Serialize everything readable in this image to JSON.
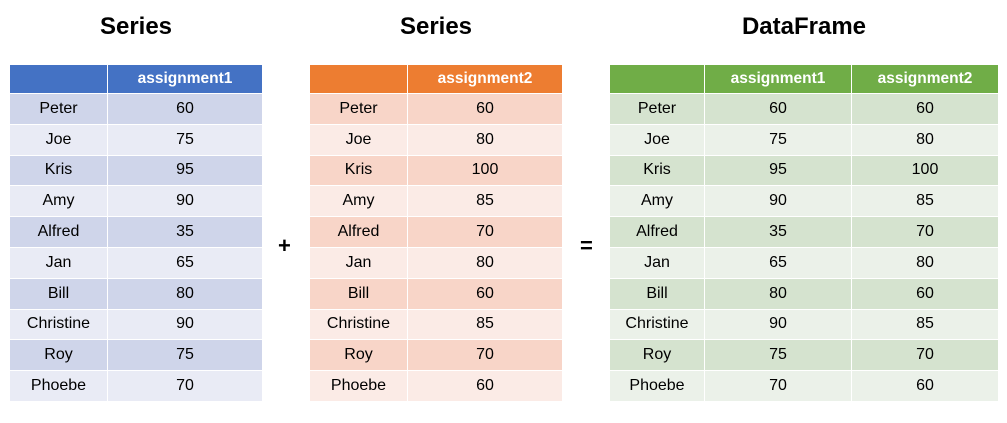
{
  "colors": {
    "series1_header": "#4472c4",
    "series1_dark": "#cfd5ea",
    "series1_light": "#e9ebf5",
    "series2_header": "#ed7d31",
    "series2_dark": "#f8d5c8",
    "series2_light": "#fbebe6",
    "df_header": "#70ad47",
    "df_dark": "#d5e3cf",
    "df_light": "#ebf1e9"
  },
  "series1": {
    "title": "Series",
    "header": [
      "",
      "assignment1"
    ],
    "rows": [
      [
        "Peter",
        "60"
      ],
      [
        "Joe",
        "75"
      ],
      [
        "Kris",
        "95"
      ],
      [
        "Amy",
        "90"
      ],
      [
        "Alfred",
        "35"
      ],
      [
        "Jan",
        "65"
      ],
      [
        "Bill",
        "80"
      ],
      [
        "Christine",
        "90"
      ],
      [
        "Roy",
        "75"
      ],
      [
        "Phoebe",
        "70"
      ]
    ]
  },
  "plus": "+",
  "series2": {
    "title": "Series",
    "header": [
      "",
      "assignment2"
    ],
    "rows": [
      [
        "Peter",
        "60"
      ],
      [
        "Joe",
        "80"
      ],
      [
        "Kris",
        "100"
      ],
      [
        "Amy",
        "85"
      ],
      [
        "Alfred",
        "70"
      ],
      [
        "Jan",
        "80"
      ],
      [
        "Bill",
        "60"
      ],
      [
        "Christine",
        "85"
      ],
      [
        "Roy",
        "70"
      ],
      [
        "Phoebe",
        "60"
      ]
    ]
  },
  "equals": "=",
  "dataframe": {
    "title": "DataFrame",
    "header": [
      "",
      "assignment1",
      "assignment2"
    ],
    "rows": [
      [
        "Peter",
        "60",
        "60"
      ],
      [
        "Joe",
        "75",
        "80"
      ],
      [
        "Kris",
        "95",
        "100"
      ],
      [
        "Amy",
        "90",
        "85"
      ],
      [
        "Alfred",
        "35",
        "70"
      ],
      [
        "Jan",
        "65",
        "80"
      ],
      [
        "Bill",
        "80",
        "60"
      ],
      [
        "Christine",
        "90",
        "85"
      ],
      [
        "Roy",
        "75",
        "70"
      ],
      [
        "Phoebe",
        "70",
        "60"
      ]
    ]
  }
}
